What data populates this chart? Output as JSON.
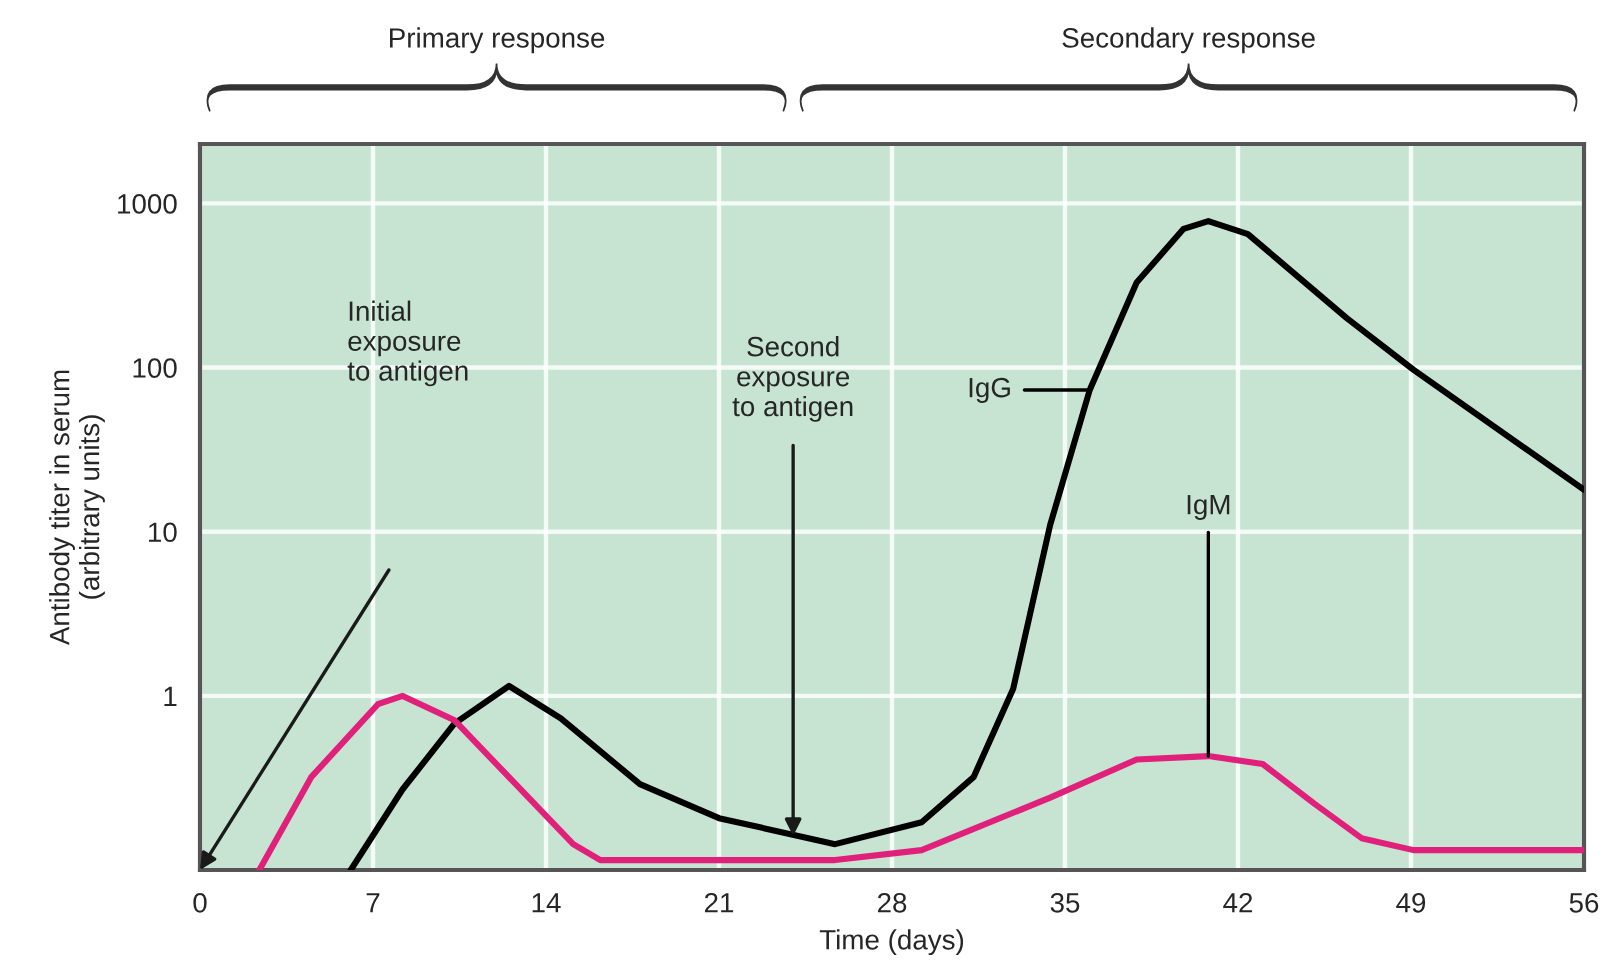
{
  "chart_data": {
    "type": "line",
    "xlabel": "Time (days)",
    "ylabel": "Antibody titer in serum\n(arbitrary units)",
    "xlim": [
      0,
      56
    ],
    "xticks": [
      0,
      7,
      14,
      21,
      28,
      35,
      42,
      49,
      56
    ],
    "ylim": [
      0.087,
      2300
    ],
    "yticks": [
      1,
      10,
      100,
      1000
    ],
    "log": true,
    "grid": true,
    "series": [
      {
        "name": "IgG",
        "color": "#000000",
        "x": [
          6.1,
          8.2,
          10.3,
          12.5,
          14.6,
          17.8,
          21,
          25.7,
          29.2,
          31.3,
          32.9,
          34.4,
          36,
          37.9,
          39.8,
          40.8,
          42.4,
          46.4,
          49.1,
          56
        ],
        "values": [
          0.087,
          0.27,
          0.68,
          1.15,
          0.73,
          0.29,
          0.18,
          0.125,
          0.17,
          0.32,
          1.1,
          11,
          73,
          330,
          700,
          780,
          650,
          200,
          97,
          18
        ]
      },
      {
        "name": "IgM",
        "color": "#e0207a",
        "x": [
          2.4,
          4.5,
          7.2,
          8.2,
          10.3,
          12.5,
          15.1,
          16.2,
          25.7,
          29.2,
          34.4,
          37.9,
          40.8,
          43,
          45.1,
          47,
          49.1,
          56
        ],
        "values": [
          0.087,
          0.32,
          0.89,
          1.0,
          0.71,
          0.32,
          0.125,
          0.1,
          0.1,
          0.115,
          0.24,
          0.41,
          0.43,
          0.385,
          0.22,
          0.136,
          0.115,
          0.115
        ]
      }
    ],
    "annotations": [
      "Initial\nexposure\nto antigen",
      {
        "text": "Second\nexposure\nto antigen",
        "x": 24,
        "y": 0.14
      },
      "Primary response",
      "Secondary response"
    ]
  }
}
